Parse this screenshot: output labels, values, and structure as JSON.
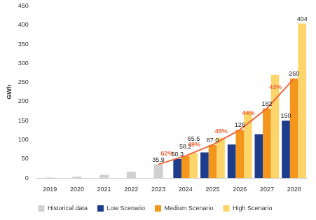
{
  "chart_data": {
    "type": "bar",
    "y_label": "GWh",
    "categories": [
      "2019",
      "2020",
      "2021",
      "2022",
      "2023",
      "2024",
      "2025",
      "2026",
      "2027",
      "2028"
    ],
    "series": [
      {
        "name": "Historical data",
        "color": "#d0d0d0",
        "values": [
          1.5,
          4,
          8.5,
          17,
          35.9,
          null,
          null,
          null,
          null,
          null
        ],
        "value_labels": [
          null,
          null,
          null,
          null,
          "35.9",
          null,
          null,
          null,
          null,
          null
        ]
      },
      {
        "name": "Low Scenario",
        "color": "#1d3c8c",
        "values": [
          null,
          null,
          null,
          null,
          null,
          50.3,
          67,
          88,
          115,
          150
        ],
        "value_labels": [
          null,
          null,
          null,
          null,
          null,
          "50.3",
          null,
          null,
          null,
          "150"
        ]
      },
      {
        "name": "Medium Scenario",
        "color": "#f5961c",
        "values": [
          null,
          null,
          null,
          null,
          null,
          58.2,
          87.0,
          126,
          182,
          260
        ],
        "value_labels": [
          null,
          null,
          null,
          null,
          null,
          "58.2",
          "87.0",
          "126",
          "182",
          "260"
        ]
      },
      {
        "name": "High Scenario",
        "color": "#fdd56a",
        "values": [
          null,
          null,
          null,
          null,
          null,
          65.5,
          105,
          173,
          270,
          404
        ],
        "value_labels": [
          null,
          null,
          null,
          null,
          null,
          "65.5",
          null,
          null,
          null,
          "404"
        ]
      },
      {
        "type": "line",
        "color": "#f0673e",
        "marker": "none",
        "values": [
          null,
          null,
          null,
          null,
          35.9,
          58.2,
          87.0,
          126,
          182,
          260
        ]
      }
    ],
    "annotations": [
      {
        "category": "2024",
        "text": "62%"
      },
      {
        "category": "2025",
        "text": "49%"
      },
      {
        "category": "2026",
        "text": "45%"
      },
      {
        "category": "2027",
        "text": "44%"
      },
      {
        "category": "2028",
        "text": "43%"
      }
    ],
    "ylim": [
      0,
      450
    ],
    "yticks": [
      0,
      50,
      100,
      150,
      200,
      250,
      300,
      350,
      400,
      450
    ],
    "grid": false,
    "legend": "bottom",
    "data_labels": true
  }
}
